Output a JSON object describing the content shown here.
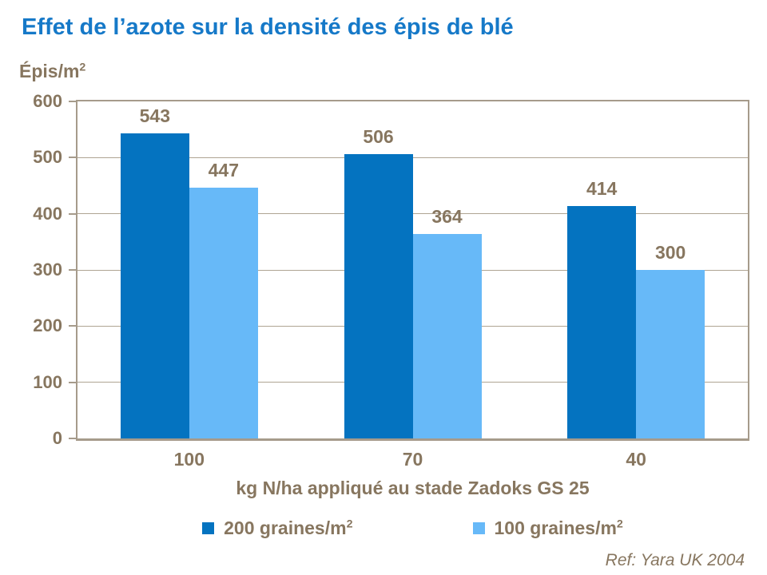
{
  "title": "Effet de l’azote sur la densité des épis de blé",
  "y_unit": {
    "text": "Épis/m",
    "sup": "2"
  },
  "chart_data": {
    "type": "bar",
    "title": "Effet de l’azote sur la densité des épis de blé",
    "categories": [
      "100",
      "70",
      "40"
    ],
    "series": [
      {
        "name": "200 graines/m",
        "name_sup": "2",
        "color": "#0473C0",
        "values": [
          543,
          506,
          414
        ]
      },
      {
        "name": "100 graines/m",
        "name_sup": "2",
        "color": "#67B9F8",
        "values": [
          447,
          364,
          300
        ]
      }
    ],
    "xlabel": "kg N/ha appliqué au stade Zadoks GS 25",
    "ylabel": "Épis/m2",
    "ylim": [
      0,
      600
    ],
    "yticks": [
      0,
      100,
      200,
      300,
      400,
      500,
      600
    ],
    "grid": true,
    "legend_position": "bottom",
    "bar_value_labels": true
  },
  "footer": {
    "ref": "Ref: Yara UK 2004"
  },
  "colors": {
    "title_blue": "#1679C8",
    "series1_blue": "#0473C0",
    "series2_light_blue": "#67B9F8",
    "text_brown": "#87765F",
    "axis_border": "#A69B8B",
    "background": "#ffffff"
  }
}
